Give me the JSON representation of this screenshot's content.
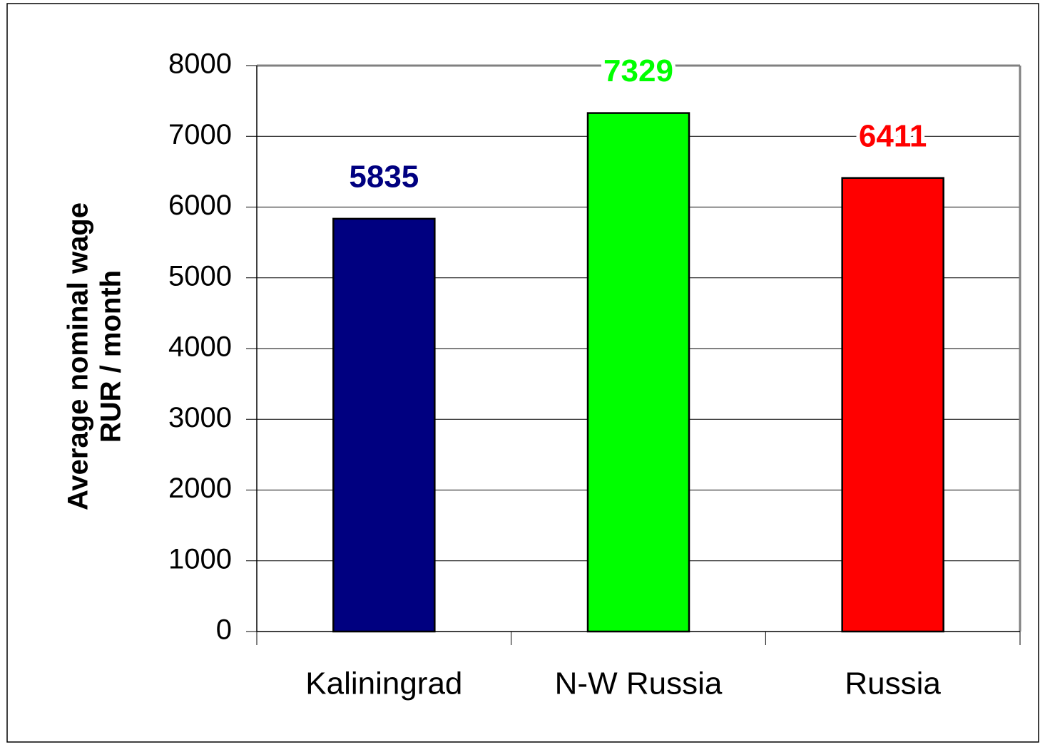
{
  "chart_data": {
    "type": "bar",
    "ylabel": [
      "Average nominal wage",
      "RUR / month"
    ],
    "categories": [
      "Kaliningrad",
      "N-W Russia",
      "Russia"
    ],
    "values": [
      5835,
      7329,
      6411
    ],
    "colors": [
      "#000080",
      "#00ff00",
      "#ff0000"
    ],
    "ylim": [
      0,
      8000
    ],
    "yticks": [
      0,
      1000,
      2000,
      3000,
      4000,
      5000,
      6000,
      7000,
      8000
    ],
    "grid": true
  }
}
